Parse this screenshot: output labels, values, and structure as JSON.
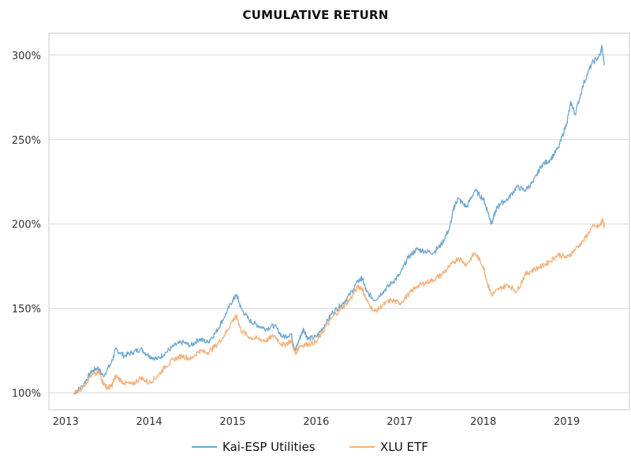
{
  "chart_data": {
    "type": "line",
    "title": "CUMULATIVE RETURN",
    "xlabel": "",
    "ylabel": "",
    "xlim": [
      2012.8,
      2019.75
    ],
    "ylim": [
      90,
      313
    ],
    "grid": "horizontal",
    "legend_position": "bottom",
    "x_ticks": [
      2013,
      2014,
      2015,
      2016,
      2017,
      2018,
      2019
    ],
    "x_tick_labels": [
      "2013",
      "2014",
      "2015",
      "2016",
      "2017",
      "2018",
      "2019"
    ],
    "y_ticks": [
      100,
      150,
      200,
      250,
      300
    ],
    "y_tick_labels": [
      "100%",
      "150%",
      "200%",
      "250%",
      "300%"
    ],
    "series": [
      {
        "name": "Kai-ESP Utilities",
        "color": "#6fa8d0",
        "points": [
          [
            2013.1,
            100
          ],
          [
            2013.2,
            104
          ],
          [
            2013.3,
            112
          ],
          [
            2013.38,
            115
          ],
          [
            2013.45,
            110
          ],
          [
            2013.55,
            118
          ],
          [
            2013.6,
            126
          ],
          [
            2013.7,
            122
          ],
          [
            2013.8,
            124
          ],
          [
            2013.9,
            126
          ],
          [
            2014.0,
            122
          ],
          [
            2014.1,
            120
          ],
          [
            2014.2,
            124
          ],
          [
            2014.3,
            128
          ],
          [
            2014.4,
            130
          ],
          [
            2014.5,
            128
          ],
          [
            2014.6,
            132
          ],
          [
            2014.7,
            130
          ],
          [
            2014.8,
            136
          ],
          [
            2014.9,
            145
          ],
          [
            2015.0,
            155
          ],
          [
            2015.05,
            158
          ],
          [
            2015.1,
            150
          ],
          [
            2015.2,
            143
          ],
          [
            2015.3,
            140
          ],
          [
            2015.4,
            138
          ],
          [
            2015.5,
            140
          ],
          [
            2015.6,
            133
          ],
          [
            2015.7,
            135
          ],
          [
            2015.75,
            125
          ],
          [
            2015.8,
            132
          ],
          [
            2015.85,
            138
          ],
          [
            2015.9,
            132
          ],
          [
            2016.0,
            133
          ],
          [
            2016.1,
            140
          ],
          [
            2016.2,
            148
          ],
          [
            2016.3,
            152
          ],
          [
            2016.4,
            158
          ],
          [
            2016.5,
            166
          ],
          [
            2016.55,
            168
          ],
          [
            2016.6,
            160
          ],
          [
            2016.7,
            155
          ],
          [
            2016.8,
            160
          ],
          [
            2016.9,
            165
          ],
          [
            2017.0,
            170
          ],
          [
            2017.1,
            180
          ],
          [
            2017.2,
            185
          ],
          [
            2017.3,
            184
          ],
          [
            2017.4,
            183
          ],
          [
            2017.5,
            188
          ],
          [
            2017.6,
            198
          ],
          [
            2017.65,
            210
          ],
          [
            2017.7,
            215
          ],
          [
            2017.8,
            210
          ],
          [
            2017.9,
            220
          ],
          [
            2018.0,
            215
          ],
          [
            2018.05,
            208
          ],
          [
            2018.1,
            200
          ],
          [
            2018.15,
            208
          ],
          [
            2018.2,
            212
          ],
          [
            2018.3,
            215
          ],
          [
            2018.4,
            222
          ],
          [
            2018.5,
            220
          ],
          [
            2018.6,
            225
          ],
          [
            2018.7,
            235
          ],
          [
            2018.8,
            238
          ],
          [
            2018.9,
            245
          ],
          [
            2019.0,
            260
          ],
          [
            2019.05,
            272
          ],
          [
            2019.1,
            265
          ],
          [
            2019.2,
            283
          ],
          [
            2019.3,
            295
          ],
          [
            2019.4,
            300
          ],
          [
            2019.42,
            305
          ],
          [
            2019.45,
            295
          ]
        ]
      },
      {
        "name": "XLU ETF",
        "color": "#f5b07a",
        "points": [
          [
            2013.1,
            100
          ],
          [
            2013.2,
            103
          ],
          [
            2013.3,
            110
          ],
          [
            2013.4,
            112
          ],
          [
            2013.45,
            106
          ],
          [
            2013.5,
            103
          ],
          [
            2013.55,
            104
          ],
          [
            2013.6,
            110
          ],
          [
            2013.7,
            106
          ],
          [
            2013.8,
            105
          ],
          [
            2013.9,
            109
          ],
          [
            2014.0,
            106
          ],
          [
            2014.1,
            110
          ],
          [
            2014.2,
            116
          ],
          [
            2014.3,
            120
          ],
          [
            2014.4,
            122
          ],
          [
            2014.5,
            120
          ],
          [
            2014.6,
            125
          ],
          [
            2014.7,
            124
          ],
          [
            2014.8,
            128
          ],
          [
            2014.9,
            134
          ],
          [
            2015.0,
            143
          ],
          [
            2015.05,
            145
          ],
          [
            2015.1,
            137
          ],
          [
            2015.2,
            133
          ],
          [
            2015.3,
            132
          ],
          [
            2015.4,
            131
          ],
          [
            2015.5,
            134
          ],
          [
            2015.6,
            128
          ],
          [
            2015.7,
            131
          ],
          [
            2015.75,
            123
          ],
          [
            2015.8,
            128
          ],
          [
            2015.9,
            129
          ],
          [
            2016.0,
            130
          ],
          [
            2016.1,
            138
          ],
          [
            2016.2,
            145
          ],
          [
            2016.3,
            150
          ],
          [
            2016.4,
            155
          ],
          [
            2016.5,
            163
          ],
          [
            2016.55,
            162
          ],
          [
            2016.6,
            155
          ],
          [
            2016.7,
            148
          ],
          [
            2016.8,
            152
          ],
          [
            2016.9,
            155
          ],
          [
            2017.0,
            153
          ],
          [
            2017.1,
            158
          ],
          [
            2017.2,
            163
          ],
          [
            2017.3,
            165
          ],
          [
            2017.4,
            167
          ],
          [
            2017.5,
            170
          ],
          [
            2017.6,
            175
          ],
          [
            2017.7,
            180
          ],
          [
            2017.8,
            176
          ],
          [
            2017.9,
            183
          ],
          [
            2018.0,
            175
          ],
          [
            2018.05,
            165
          ],
          [
            2018.1,
            158
          ],
          [
            2018.2,
            162
          ],
          [
            2018.3,
            164
          ],
          [
            2018.4,
            160
          ],
          [
            2018.5,
            170
          ],
          [
            2018.6,
            173
          ],
          [
            2018.7,
            175
          ],
          [
            2018.8,
            178
          ],
          [
            2018.9,
            182
          ],
          [
            2019.0,
            180
          ],
          [
            2019.1,
            185
          ],
          [
            2019.2,
            190
          ],
          [
            2019.3,
            198
          ],
          [
            2019.4,
            199
          ],
          [
            2019.43,
            203
          ],
          [
            2019.45,
            198
          ]
        ]
      }
    ]
  }
}
